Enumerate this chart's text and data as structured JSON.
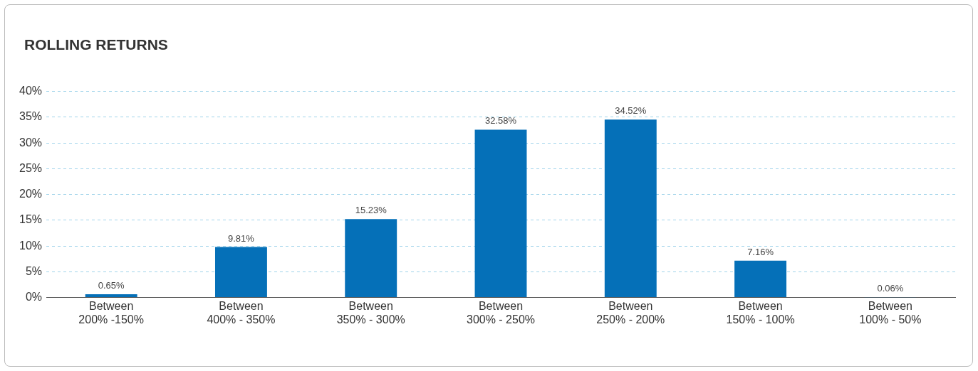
{
  "chart_data": {
    "type": "bar",
    "title": "ROLLING RETURNS",
    "categories": [
      "Between 200% -150%",
      "Between 400% - 350%",
      "Between 350% - 300%",
      "Between 300% - 250%",
      "Between 250% - 200%",
      "Between 150% - 100%",
      "Between 100% - 50%"
    ],
    "values": [
      0.65,
      9.81,
      15.23,
      32.58,
      34.52,
      7.16,
      0.06
    ],
    "color": "#0570b8",
    "ylim": [
      0,
      40
    ],
    "yticks": [
      {
        "value": 0,
        "label": "0%"
      },
      {
        "value": 5,
        "label": "5%"
      },
      {
        "value": 10,
        "label": "10%"
      },
      {
        "value": 15,
        "label": "15%"
      },
      {
        "value": 20,
        "label": "20%"
      },
      {
        "value": 25,
        "label": "25%"
      },
      {
        "value": 30,
        "label": "30%"
      },
      {
        "value": 35,
        "label": "35%"
      },
      {
        "value": 40,
        "label": "40%"
      }
    ],
    "value_labels": [
      "0.65%",
      "9.81%",
      "15.23%",
      "32.58%",
      "34.52%",
      "7.16%",
      "0.06%"
    ],
    "grid": "y",
    "legend": false
  }
}
